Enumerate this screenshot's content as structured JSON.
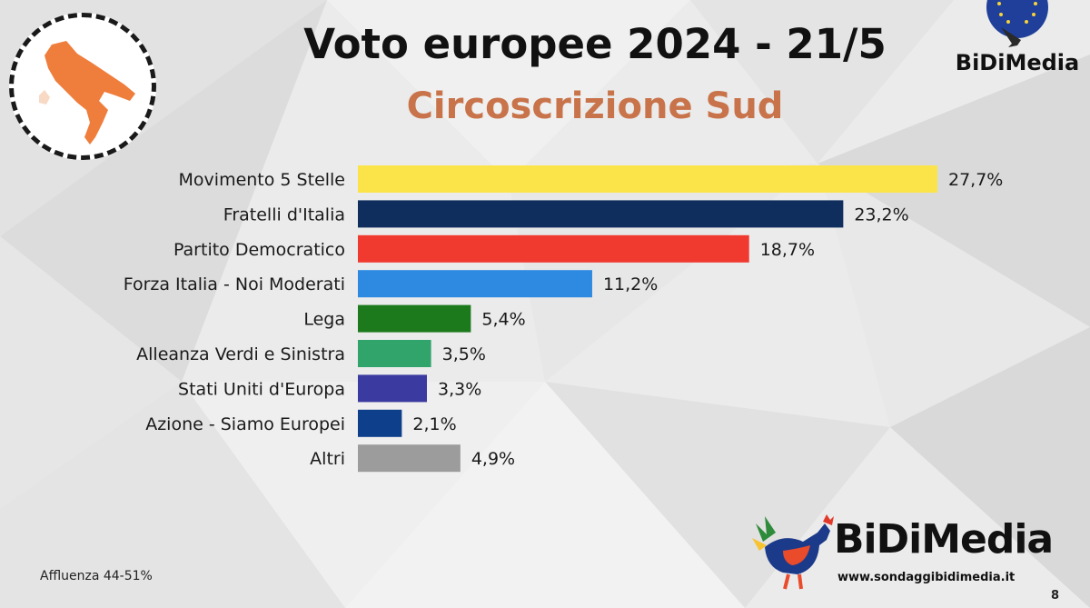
{
  "header": {
    "title": "Voto europee 2024 - 21/5",
    "subtitle": "Circoscrizione Sud"
  },
  "colors": {
    "subtitle": "#c8734a",
    "map": "#ef7d3c",
    "label_text": "#1a1a1a"
  },
  "icons": {
    "map": "southern-italy-map-icon",
    "top_logo": "eu-stars-chicken-icon",
    "bottom_logo": "rooster-icon"
  },
  "branding": {
    "top_logo_text": "BiDiMedia",
    "bottom_logo_text": "BiDiMedia",
    "bottom_logo_url": "www.sondaggibidimedia.it"
  },
  "footer": {
    "turnout": "Affluenza 44-51%",
    "page_number": "8"
  },
  "chart_data": {
    "type": "bar",
    "orientation": "horizontal",
    "title": "Voto europee 2024 - 21/5",
    "subtitle": "Circoscrizione Sud",
    "categories": [
      "Movimento 5 Stelle",
      "Fratelli d'Italia",
      "Partito Democratico",
      "Forza Italia - Noi Moderati",
      "Lega",
      "Alleanza Verdi e Sinistra",
      "Stati Uniti d'Europa",
      "Azione - Siamo Europei",
      "Altri"
    ],
    "values": [
      27.7,
      23.2,
      18.7,
      11.2,
      5.4,
      3.5,
      3.3,
      2.1,
      4.9
    ],
    "value_labels": [
      "27,7%",
      "23,2%",
      "18,7%",
      "11,2%",
      "5,4%",
      "3,5%",
      "3,3%",
      "2,1%",
      "4,9%"
    ],
    "colors": [
      "#fbe44a",
      "#0f2e5e",
      "#f0392f",
      "#2d8ae0",
      "#1c7a1c",
      "#30a46a",
      "#3b3aa0",
      "#0e3f8a",
      "#9c9c9c"
    ],
    "xlim": [
      0,
      27.7
    ],
    "xlabel": "",
    "ylabel": "",
    "grid": false,
    "legend": "none"
  }
}
